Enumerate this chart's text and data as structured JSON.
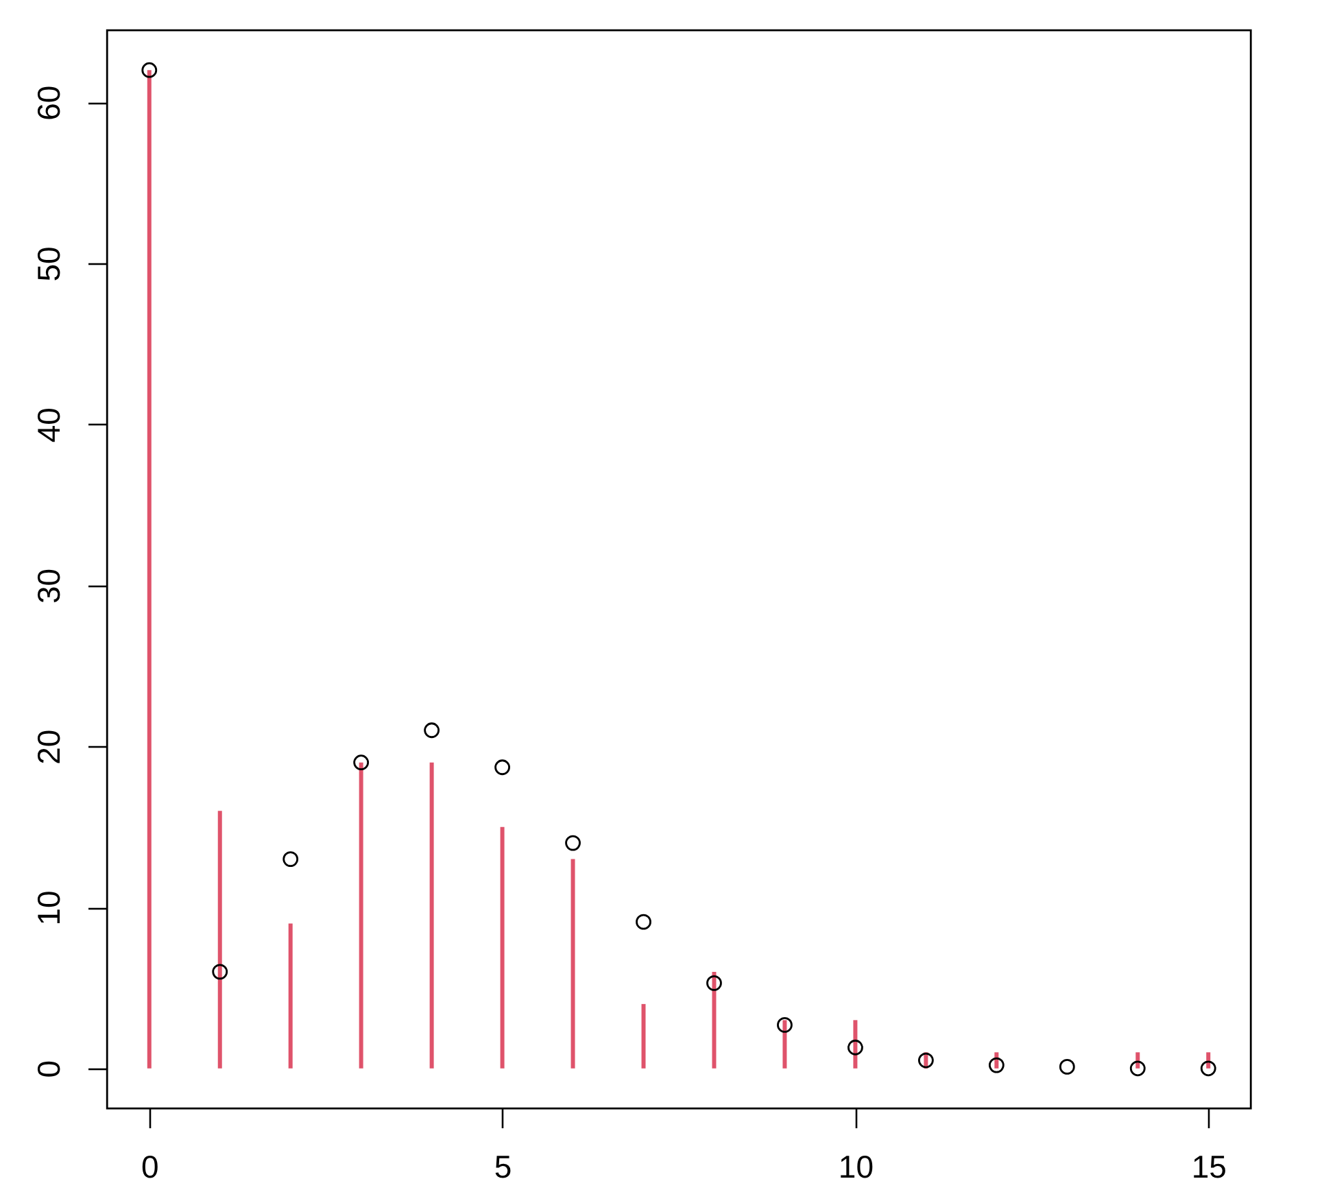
{
  "chart_data": {
    "type": "bar",
    "x": [
      0,
      1,
      2,
      3,
      4,
      5,
      6,
      7,
      8,
      9,
      10,
      11,
      12,
      13,
      14,
      15
    ],
    "series": [
      {
        "color": "#df536b",
        "values": [
          62,
          16,
          9,
          19,
          19,
          15,
          13,
          4,
          6,
          3,
          3,
          1,
          1,
          0,
          1,
          1
        ]
      },
      {
        "type": "scatter",
        "color": "#000000",
        "values": [
          62,
          6,
          13,
          19,
          21,
          18.7,
          14,
          9.1,
          5.3,
          2.7,
          1.3,
          0.5,
          0.2,
          0.1,
          0,
          0
        ]
      }
    ],
    "marker": "circle",
    "xlim": [
      -0.6,
      15.6
    ],
    "xticks": [
      0,
      5,
      10,
      15
    ],
    "ylim": [
      -2.48,
      64.48
    ],
    "yticks": [
      0,
      10,
      20,
      30,
      40,
      50,
      60
    ],
    "grid": false
  }
}
